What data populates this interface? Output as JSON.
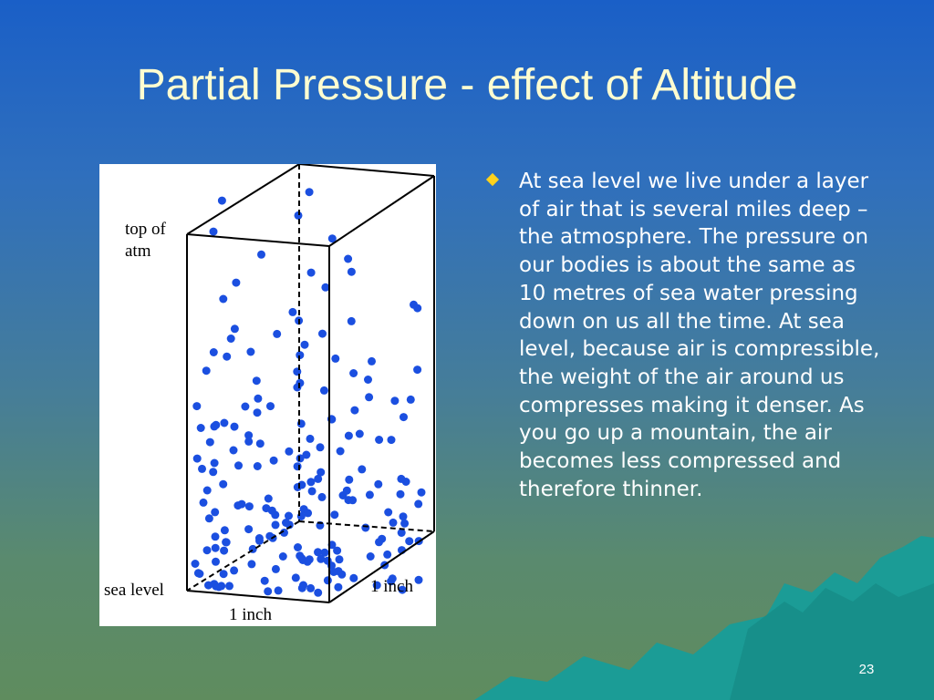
{
  "slide": {
    "title": "Partial Pressure - effect of Altitude",
    "page_number": "23"
  },
  "figure": {
    "label_top_line1": "top of",
    "label_top_line2": "atm",
    "label_sea_level": "sea level",
    "label_width": "1 inch",
    "label_depth": "1 inch",
    "dot_color": "#1b4fe0"
  },
  "bullet": {
    "text": "At sea level we live under a layer of air that is several miles deep – the atmosphere.  The pressure on our bodies is about the same as 10 metres of sea water pressing down on us all the time.  At sea level, because air is compressible, the weight of the air around us compresses making it denser.  As you go up a mountain, the air becomes less compressed and therefore thinner."
  },
  "colors": {
    "title": "#fffdd0",
    "bullet_icon": "#ffd21c",
    "mountain": "#1b9c96"
  }
}
